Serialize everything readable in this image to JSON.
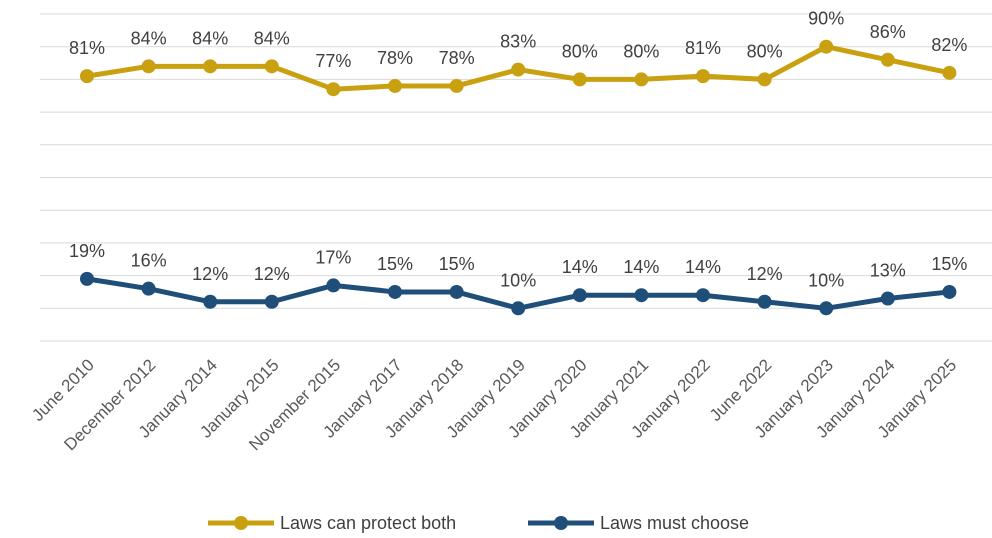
{
  "chart_data": {
    "type": "line",
    "title": "",
    "xlabel": "",
    "ylabel": "",
    "categories": [
      "June 2010",
      "December 2012",
      "January 2014",
      "January 2015",
      "November 2015",
      "January 2017",
      "January 2018",
      "January 2019",
      "January 2020",
      "January 2021",
      "January 2022",
      "June 2022",
      "January 2023",
      "January 2024",
      "January 2025"
    ],
    "series": [
      {
        "name": "Laws can protect both",
        "color": "#C9A010",
        "values": [
          81,
          84,
          84,
          84,
          77,
          78,
          78,
          83,
          80,
          80,
          81,
          80,
          90,
          86,
          82
        ],
        "labels": [
          "81%",
          "84%",
          "84%",
          "84%",
          "77%",
          "78%",
          "78%",
          "83%",
          "80%",
          "80%",
          "81%",
          "80%",
          "90%",
          "86%",
          "82%"
        ]
      },
      {
        "name": "Laws must choose",
        "color": "#1F4E79",
        "values": [
          19,
          16,
          12,
          12,
          17,
          15,
          15,
          10,
          14,
          14,
          14,
          12,
          10,
          13,
          15
        ],
        "labels": [
          "19%",
          "16%",
          "12%",
          "12%",
          "17%",
          "15%",
          "15%",
          "10%",
          "14%",
          "14%",
          "14%",
          "12%",
          "10%",
          "13%",
          "15%"
        ]
      }
    ],
    "ylim": [
      0,
      100
    ],
    "grid": true,
    "legend_position": "bottom"
  }
}
